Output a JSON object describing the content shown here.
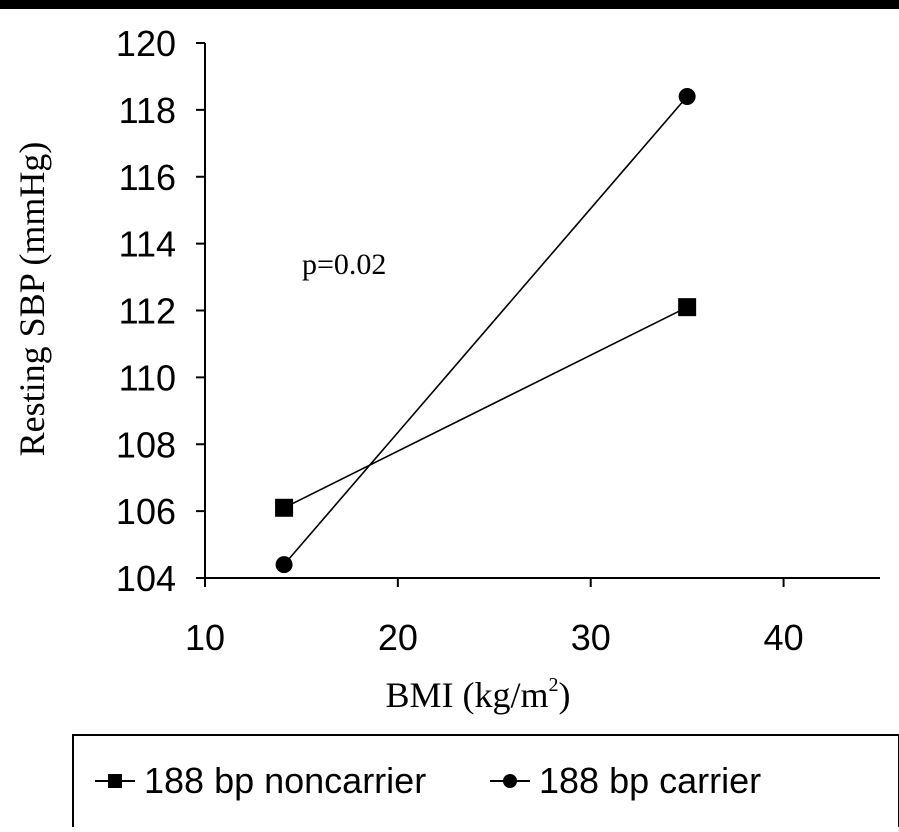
{
  "chart_data": {
    "type": "line",
    "title": "",
    "xlabel": "BMI (kg/m",
    "xlabel_superscript": "2",
    "xlabel_suffix": ")",
    "ylabel": "Resting SBP (mmHg)",
    "xlim": [
      10,
      45
    ],
    "ylim": [
      104,
      120
    ],
    "xticks": [
      10,
      20,
      30,
      40
    ],
    "yticks": [
      104,
      106,
      108,
      110,
      112,
      114,
      116,
      118,
      120
    ],
    "grid": false,
    "legend_position": "bottom",
    "annotation": "p=0.02",
    "series": [
      {
        "name": "188 bp noncarrier",
        "marker": "square",
        "color": "#000000",
        "x": [
          14.1,
          35
        ],
        "y": [
          106.1,
          112.1
        ]
      },
      {
        "name": "188 bp carrier",
        "marker": "circle",
        "color": "#000000",
        "x": [
          14.1,
          35
        ],
        "y": [
          104.4,
          118.4
        ]
      }
    ]
  }
}
